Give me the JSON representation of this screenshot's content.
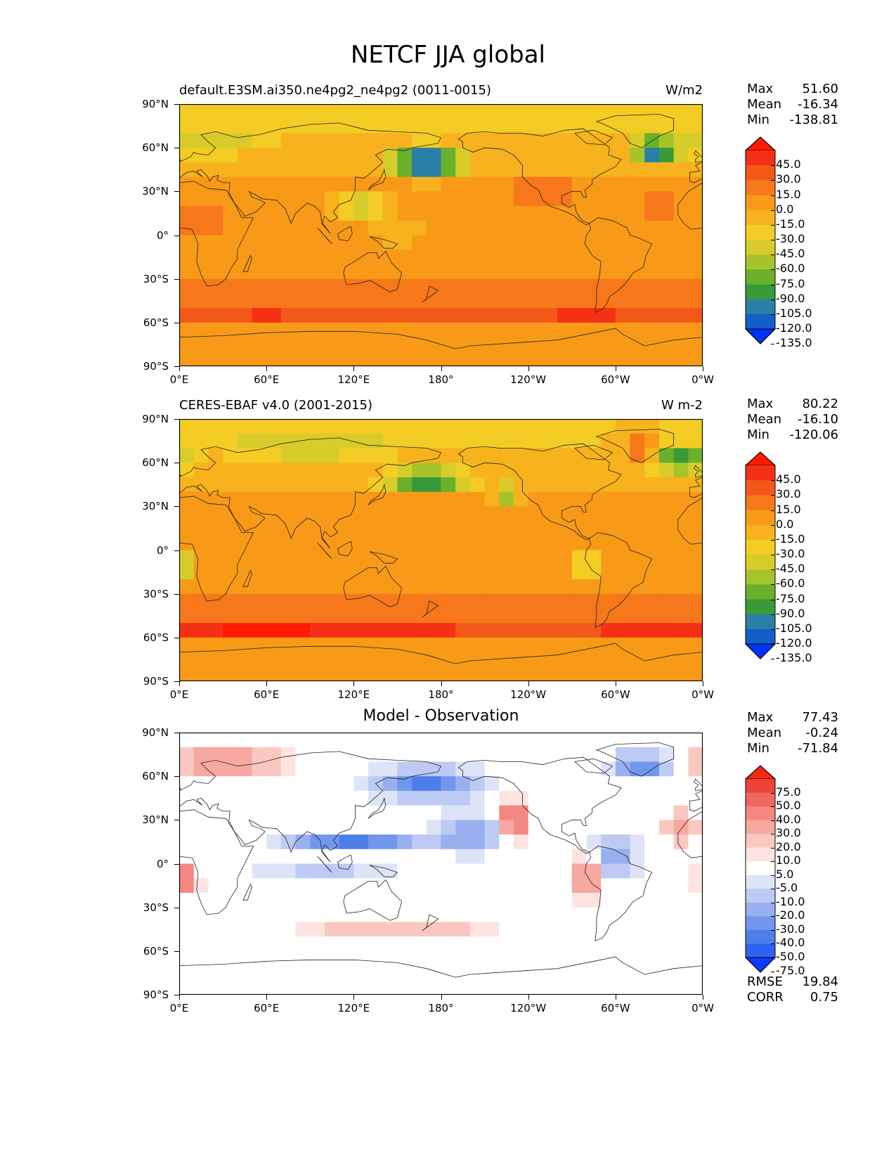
{
  "figure": {
    "title": "NETCF JJA global"
  },
  "axes": {
    "lat_ticks": [
      "90°N",
      "60°N",
      "30°N",
      "0°",
      "30°S",
      "60°S",
      "90°S"
    ],
    "lon_ticks": [
      "0°E",
      "60°E",
      "120°E",
      "180°",
      "120°W",
      "60°W",
      "0°W"
    ]
  },
  "panels": [
    {
      "id": "model",
      "title_left": "default.E3SM.ai350.ne4pg2_ne4pg2 (0011-0015)",
      "title_right": "W/m2",
      "title_center": "",
      "stats": {
        "max_label": "Max",
        "max": "51.60",
        "mean_label": "Mean",
        "mean": "-16.34",
        "min_label": "Min",
        "min": "-138.81"
      },
      "colorbar": [
        "45.0",
        "30.0",
        "15.0",
        "0.0",
        "-15.0",
        "-30.0",
        "-45.0",
        "-60.0",
        "-75.0",
        "-90.0",
        "-105.0",
        "-120.0",
        "-135.0"
      ]
    },
    {
      "id": "obs",
      "title_left": "CERES-EBAF v4.0 (2001-2015)",
      "title_right": "W m-2",
      "title_center": "",
      "stats": {
        "max_label": "Max",
        "max": "80.22",
        "mean_label": "Mean",
        "mean": "-16.10",
        "min_label": "Min",
        "min": "-120.06"
      },
      "colorbar": [
        "45.0",
        "30.0",
        "15.0",
        "0.0",
        "-15.0",
        "-30.0",
        "-45.0",
        "-60.0",
        "-75.0",
        "-90.0",
        "-105.0",
        "-120.0",
        "-135.0"
      ]
    },
    {
      "id": "diff",
      "title_left": "",
      "title_right": "",
      "title_center": "Model - Observation",
      "stats": {
        "max_label": "Max",
        "max": "77.43",
        "mean_label": "Mean",
        "mean": "-0.24",
        "min_label": "Min",
        "min": "-71.84"
      },
      "colorbar": [
        "75.0",
        "50.0",
        "40.0",
        "30.0",
        "20.0",
        "10.0",
        "5.0",
        "-5.0",
        "-10.0",
        "-20.0",
        "-30.0",
        "-40.0",
        "-50.0",
        "-75.0"
      ],
      "rmse_label": "RMSE",
      "rmse": "19.84",
      "corr_label": "CORR",
      "corr": "0.75"
    }
  ],
  "colors": {
    "main_scale": [
      "#0032ff",
      "#1160c8",
      "#2a7fa6",
      "#3a9a3a",
      "#6ab02a",
      "#a6c42a",
      "#d8cc2a",
      "#f3cc24",
      "#f7b21e",
      "#f89a18",
      "#f6781a",
      "#f45818",
      "#f63016",
      "#ff1a00"
    ],
    "diff_scale": [
      "#0a3cff",
      "#2f62f0",
      "#4e7ee8",
      "#7296ec",
      "#98b0f0",
      "#bccaf4",
      "#dde4f8",
      "#ffffff",
      "#fde4e0",
      "#fac8c0",
      "#f7a8a0",
      "#f48880",
      "#f06660",
      "#ee4238",
      "#f42a10"
    ]
  }
}
